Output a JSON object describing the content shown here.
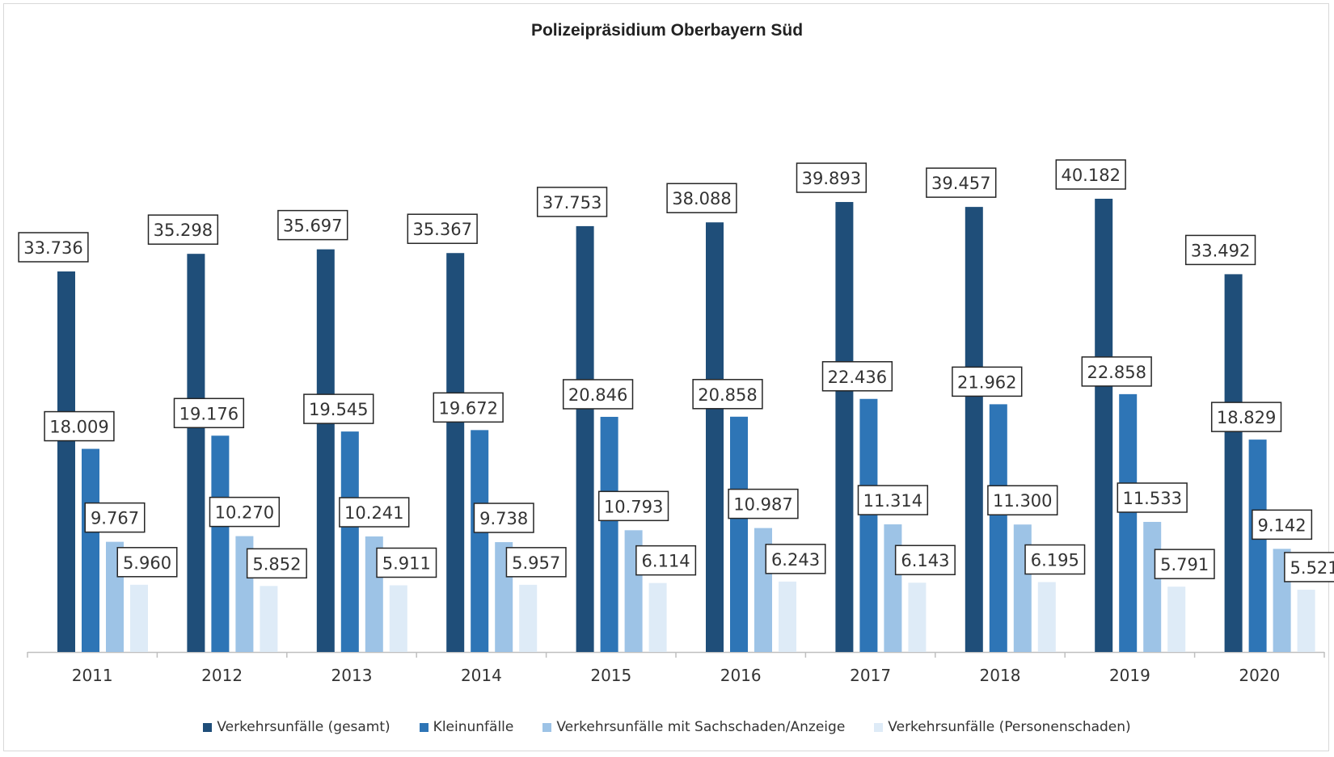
{
  "chart_data": {
    "type": "bar",
    "title": "Polizeipräsidium Oberbayern Süd",
    "xlabel": "",
    "ylabel": "",
    "ylim": [
      0,
      45000
    ],
    "grid": false,
    "legend_position": "bottom",
    "categories": [
      "2011",
      "2012",
      "2013",
      "2014",
      "2015",
      "2016",
      "2017",
      "2018",
      "2019",
      "2020"
    ],
    "series": [
      {
        "name": "Verkehrsunfälle (gesamt)",
        "color": "#1f4e79",
        "values": [
          33736,
          35298,
          35697,
          35367,
          37753,
          38088,
          39893,
          39457,
          40182,
          33492
        ],
        "labels": [
          "33.736",
          "35.298",
          "35.697",
          "35.367",
          "37.753",
          "38.088",
          "39.893",
          "39.457",
          "40.182",
          "33.492"
        ]
      },
      {
        "name": "Kleinunfälle",
        "color": "#2e75b6",
        "values": [
          18009,
          19176,
          19545,
          19672,
          20846,
          20858,
          22436,
          21962,
          22858,
          18829
        ],
        "labels": [
          "18.009",
          "19.176",
          "19.545",
          "19.672",
          "20.846",
          "20.858",
          "22.436",
          "21.962",
          "22.858",
          "18.829"
        ]
      },
      {
        "name": "Verkehrsunfälle mit Sachschaden/Anzeige",
        "color": "#9dc3e6",
        "values": [
          9767,
          10270,
          10241,
          9738,
          10793,
          10987,
          11314,
          11300,
          11533,
          9142
        ],
        "labels": [
          "9.767",
          "10.270",
          "10.241",
          "9.738",
          "10.793",
          "10.987",
          "11.314",
          "11.300",
          "11.533",
          "9.142"
        ]
      },
      {
        "name": "Verkehrsunfälle (Personenschaden)",
        "color": "#deebf7",
        "values": [
          5960,
          5852,
          5911,
          5957,
          6114,
          6243,
          6143,
          6195,
          5791,
          5521
        ],
        "labels": [
          "5.960",
          "5.852",
          "5.911",
          "5.957",
          "6.114",
          "6.243",
          "6.143",
          "6.195",
          "5.791",
          "5.521"
        ]
      }
    ]
  }
}
